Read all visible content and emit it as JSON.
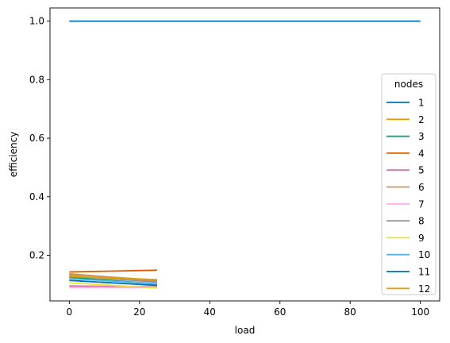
{
  "chart_data": {
    "type": "line",
    "title": "",
    "xlabel": "load",
    "ylabel": "efficiency",
    "xlim": [
      -5.5,
      105.5
    ],
    "ylim": [
      0.044,
      1.045
    ],
    "xticks": [
      0,
      20,
      40,
      60,
      80,
      100
    ],
    "yticks": [
      0.2,
      0.4,
      0.6,
      0.8,
      1.0
    ],
    "xtick_labels": [
      "0",
      "20",
      "40",
      "60",
      "80",
      "100"
    ],
    "ytick_labels": [
      "0.2",
      "0.4",
      "0.6",
      "0.8",
      "1.0"
    ],
    "grid": false,
    "legend": {
      "title": "nodes",
      "placement": "right"
    },
    "series": [
      {
        "name": "1",
        "color": "#0072b2",
        "x": [
          0,
          100
        ],
        "y": [
          1.0,
          1.0
        ]
      },
      {
        "name": "2",
        "color": "#e69f00",
        "x": [
          0,
          25
        ],
        "y": [
          0.135,
          0.115
        ]
      },
      {
        "name": "3",
        "color": "#009e73",
        "x": [
          0,
          25
        ],
        "y": [
          0.125,
          0.102
        ]
      },
      {
        "name": "4",
        "color": "#d55e00",
        "x": [
          0,
          25
        ],
        "y": [
          0.143,
          0.149
        ]
      },
      {
        "name": "5",
        "color": "#cc79a7",
        "x": [
          0,
          25
        ],
        "y": [
          0.095,
          0.092
        ]
      },
      {
        "name": "6",
        "color": "#ca9161",
        "x": [
          0,
          25
        ],
        "y": [
          0.137,
          0.112
        ]
      },
      {
        "name": "7",
        "color": "#fbafe4",
        "x": [
          0,
          25
        ],
        "y": [
          0.09,
          0.09
        ]
      },
      {
        "name": "8",
        "color": "#949494",
        "x": [
          0,
          25
        ],
        "y": [
          0.13,
          0.108
        ]
      },
      {
        "name": "9",
        "color": "#ece133",
        "x": [
          0,
          25
        ],
        "y": [
          0.106,
          0.088
        ]
      },
      {
        "name": "10",
        "color": "#56b4e9",
        "x": [
          0,
          25
        ],
        "y": [
          0.12,
          0.103
        ]
      },
      {
        "name": "11",
        "color": "#0072b2",
        "x": [
          0,
          25
        ],
        "y": [
          0.114,
          0.097
        ]
      },
      {
        "name": "12",
        "color": "#e69f00",
        "x": [
          0,
          25
        ],
        "y": [
          0.127,
          0.117
        ]
      }
    ]
  }
}
